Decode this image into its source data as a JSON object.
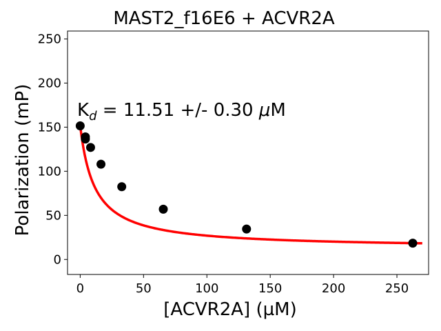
{
  "chart_data": {
    "type": "scatter",
    "title": "MAST2_f16E6 + ACVR2A",
    "xlabel": "[ACVR2A] (µM)",
    "ylabel": "Polarization (mP)",
    "xlim": [
      -10,
      275
    ],
    "ylim": [
      -17,
      259
    ],
    "xticks": [
      0,
      50,
      100,
      150,
      200,
      250
    ],
    "yticks": [
      0,
      50,
      100,
      150,
      200,
      250
    ],
    "annotation": {
      "main": "K",
      "sub": "d",
      "rest": " = 11.51 +/- 0.30 ",
      "mu": "μ",
      "unit": "M"
    },
    "series": [
      {
        "name": "measured",
        "x": [
          0,
          4.1,
          4.1,
          8.2,
          16.4,
          32.8,
          65.6,
          131.3,
          262.5
        ],
        "y": [
          151.5,
          139,
          136.5,
          127,
          108,
          82.5,
          57,
          34.5,
          18.5
        ]
      }
    ],
    "fit": {
      "name": "fit",
      "model": "hyperbolic",
      "Kd": 11.51,
      "x_start": 0,
      "x_end": 270,
      "color": "#ff0000"
    },
    "point_color": "#000000"
  }
}
